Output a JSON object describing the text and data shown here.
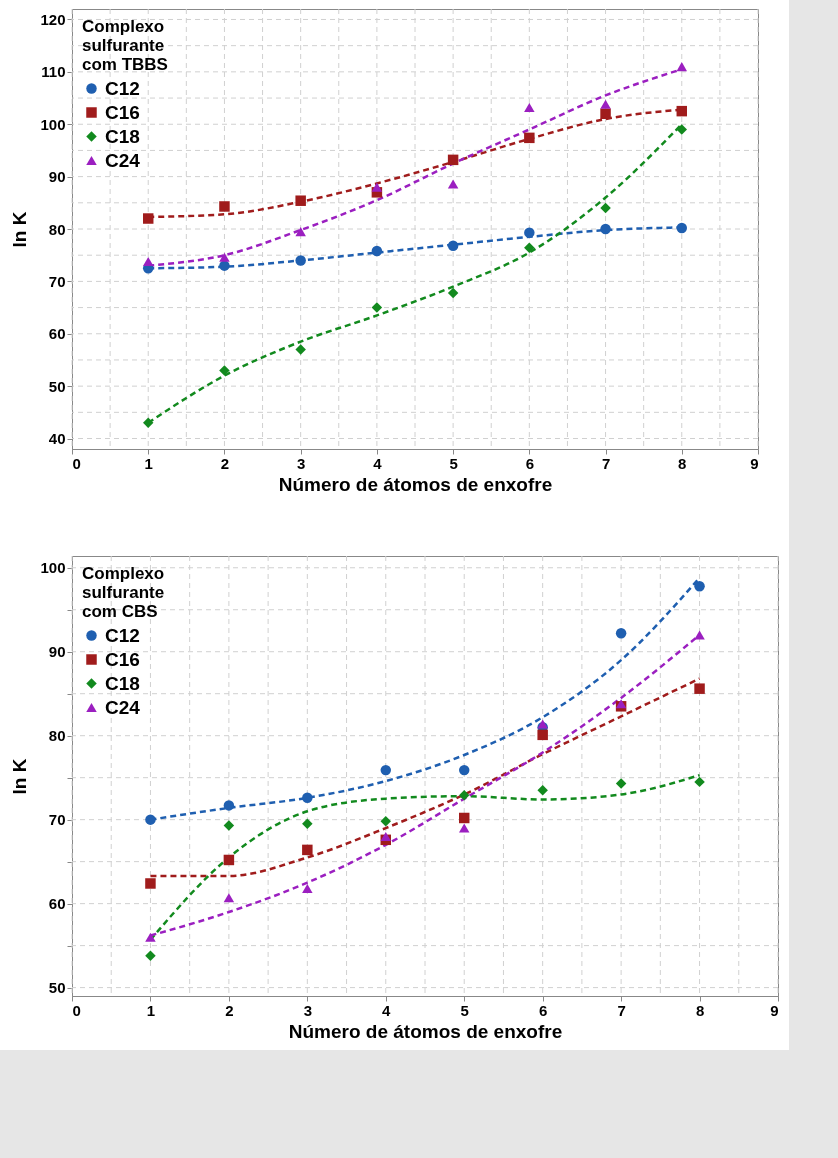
{
  "chart_data": [
    {
      "type": "scatter",
      "xlabel": "Número de átomos de enxofre",
      "ylabel": "ln K",
      "legend_title": "Complexo\nsulfurante\ncom TBBS",
      "legend": "top left",
      "grid": true,
      "line_style": "dashed",
      "x": [
        1,
        2,
        3,
        4,
        5,
        6,
        7,
        8
      ],
      "xlim": [
        0,
        9
      ],
      "ylim": [
        38,
        122
      ],
      "xticks": [
        0,
        {
          "value": 0.5,
          "label": null
        },
        1,
        {
          "value": 1.5,
          "label": null
        },
        2,
        {
          "value": 2.5,
          "label": null
        },
        3,
        {
          "value": 3.5,
          "label": null
        },
        4,
        {
          "value": 4.5,
          "label": null
        },
        5,
        {
          "value": 5.5,
          "label": null
        },
        6,
        {
          "value": 6.5,
          "label": null
        },
        7,
        {
          "value": 7.5,
          "label": null
        },
        8,
        {
          "value": 8.5,
          "label": null
        },
        9
      ],
      "yticks": [
        40,
        {
          "value": 45,
          "label": null
        },
        50,
        {
          "value": 55,
          "label": null
        },
        60,
        {
          "value": 65,
          "label": null
        },
        70,
        {
          "value": 75,
          "label": null
        },
        80,
        {
          "value": 85,
          "label": null
        },
        90,
        {
          "value": 95,
          "label": null
        },
        100,
        {
          "value": 105,
          "label": null
        },
        110,
        {
          "value": 115,
          "label": null
        },
        120
      ],
      "series": [
        {
          "name": "C12",
          "color": "#1f5fb0",
          "marker": "circle",
          "values": [
            72.5,
            73,
            74,
            75.8,
            76.8,
            79.3,
            80,
            80.2
          ]
        },
        {
          "name": "C16",
          "color": "#a01c1c",
          "marker": "square",
          "values": [
            82,
            84.3,
            85.4,
            87,
            93.2,
            97.4,
            102,
            102.5
          ]
        },
        {
          "name": "C18",
          "color": "#128a1e",
          "marker": "diamond",
          "values": [
            43,
            53,
            57,
            65,
            67.8,
            76.4,
            84,
            99
          ]
        },
        {
          "name": "C24",
          "color": "#9b1fc0",
          "marker": "triangle",
          "values": [
            73.8,
            74.6,
            79.5,
            88,
            88.6,
            103.2,
            103.8,
            111
          ]
        },
        {
          "type": "line",
          "color": "#1f5fb0",
          "values": [
            72.5,
            72.8,
            74,
            75.5,
            77,
            78.5,
            79.8,
            80.3
          ]
        },
        {
          "type": "line",
          "color": "#a01c1c",
          "values": [
            82.3,
            82.8,
            85.2,
            88.7,
            92.8,
            97.2,
            101,
            102.8
          ]
        },
        {
          "type": "line",
          "color": "#128a1e",
          "values": [
            43,
            52,
            58.5,
            63.5,
            69,
            75.5,
            86,
            100
          ]
        },
        {
          "type": "line",
          "color": "#9b1fc0",
          "values": [
            73,
            75,
            79.8,
            85.5,
            92.5,
            99,
            105.5,
            110.5
          ]
        }
      ]
    },
    {
      "type": "scatter",
      "xlabel": "Número de átomos de enxofre",
      "ylabel": "ln K",
      "legend_title": "Complexo\nsulfurante\ncom CBS",
      "legend": "top left",
      "grid": true,
      "line_style": "dashed",
      "x": [
        1,
        2,
        3,
        4,
        5,
        6,
        7,
        8
      ],
      "xlim": [
        0,
        9
      ],
      "ylim": [
        49,
        101.4
      ],
      "xticks": [
        0,
        {
          "value": 0.5,
          "label": null
        },
        1,
        {
          "value": 1.5,
          "label": null
        },
        2,
        {
          "value": 2.5,
          "label": null
        },
        3,
        {
          "value": 3.5,
          "label": null
        },
        4,
        {
          "value": 4.5,
          "label": null
        },
        5,
        {
          "value": 5.5,
          "label": null
        },
        6,
        {
          "value": 6.5,
          "label": null
        },
        7,
        {
          "value": 7.5,
          "label": null
        },
        8,
        {
          "value": 8.5,
          "label": null
        },
        9
      ],
      "yticks": [
        50,
        {
          "value": 55,
          "label": null
        },
        60,
        {
          "value": 65,
          "label": null
        },
        70,
        {
          "value": 75,
          "label": null
        },
        80,
        {
          "value": 85,
          "label": null
        },
        90,
        {
          "value": 95,
          "label": null
        },
        100
      ],
      "series": [
        {
          "name": "C12",
          "color": "#1f5fb0",
          "marker": "circle",
          "values": [
            70,
            71.7,
            72.6,
            75.9,
            75.9,
            81,
            92.2,
            97.8
          ]
        },
        {
          "name": "C16",
          "color": "#a01c1c",
          "marker": "square",
          "values": [
            62.4,
            65.2,
            66.4,
            67.6,
            70.2,
            80.1,
            83.5,
            85.6
          ]
        },
        {
          "name": "C18",
          "color": "#128a1e",
          "marker": "diamond",
          "values": [
            53.8,
            69.3,
            69.5,
            69.8,
            72.9,
            73.5,
            74.3,
            74.5
          ]
        },
        {
          "name": "C24",
          "color": "#9b1fc0",
          "marker": "triangle",
          "values": [
            56,
            60.7,
            61.8,
            68,
            69,
            81.4,
            83.8,
            92
          ]
        },
        {
          "type": "line",
          "color": "#1f5fb0",
          "values": [
            70,
            71.4,
            72.6,
            74.6,
            77.7,
            82.2,
            89,
            98.8
          ]
        },
        {
          "type": "line",
          "color": "#a01c1c",
          "values": [
            63.3,
            63.3,
            65.5,
            69,
            73,
            77.8,
            82.3,
            86.8
          ]
        },
        {
          "type": "line",
          "color": "#128a1e",
          "values": [
            55.7,
            65.5,
            71,
            72.5,
            72.8,
            72.4,
            73,
            75.3
          ]
        },
        {
          "type": "line",
          "color": "#9b1fc0",
          "values": [
            56.2,
            59,
            62.5,
            67,
            72.5,
            78,
            84.5,
            92
          ]
        }
      ]
    }
  ]
}
